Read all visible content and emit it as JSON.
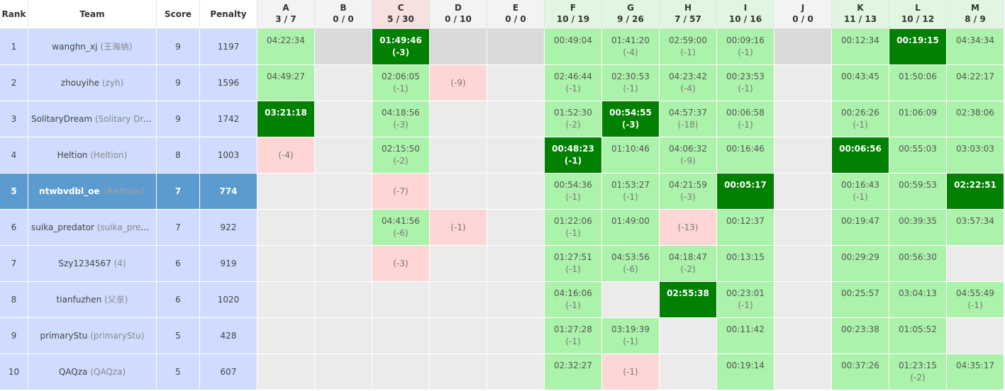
{
  "header": {
    "columns": [
      "Rank",
      "Team",
      "Score",
      "Penalty"
    ],
    "problems": [
      {
        "letter": "A",
        "count": "3 / 7",
        "status": "none"
      },
      {
        "letter": "B",
        "count": "0 / 0",
        "status": "none"
      },
      {
        "letter": "C",
        "count": "5 / 30",
        "status": "failed"
      },
      {
        "letter": "D",
        "count": "0 / 10",
        "status": "none"
      },
      {
        "letter": "E",
        "count": "0 / 0",
        "status": "none"
      },
      {
        "letter": "F",
        "count": "10 / 19",
        "status": "solved"
      },
      {
        "letter": "G",
        "count": "9 / 26",
        "status": "solved"
      },
      {
        "letter": "H",
        "count": "7 / 57",
        "status": "solved"
      },
      {
        "letter": "I",
        "count": "10 / 16",
        "status": "solved"
      },
      {
        "letter": "J",
        "count": "0 / 0",
        "status": "none"
      },
      {
        "letter": "K",
        "count": "11 / 13",
        "status": "solved"
      },
      {
        "letter": "L",
        "count": "10 / 12",
        "status": "solved"
      },
      {
        "letter": "M",
        "count": "8 / 9",
        "status": "solved"
      }
    ]
  },
  "rows": [
    {
      "rank": "1",
      "name": "wanghn_xj",
      "alias": "(王海纳)",
      "score": "9",
      "penalty": "1197",
      "cells": [
        {
          "time": "04:22:34",
          "status": "solved"
        },
        null,
        {
          "time": "01:49:46",
          "tries": "(-3)",
          "status": "first"
        },
        null,
        null,
        {
          "time": "00:49:04",
          "status": "solved"
        },
        {
          "time": "01:41:20",
          "tries": "(-4)",
          "status": "solved"
        },
        {
          "time": "02:59:00",
          "tries": "(-1)",
          "status": "solved"
        },
        {
          "time": "00:09:16",
          "tries": "(-1)",
          "status": "solved"
        },
        null,
        {
          "time": "00:12:34",
          "status": "solved"
        },
        {
          "time": "00:19:15",
          "status": "first"
        },
        {
          "time": "04:34:34",
          "status": "solved"
        }
      ]
    },
    {
      "rank": "2",
      "name": "zhouyihe",
      "alias": "(zyh)",
      "score": "9",
      "penalty": "1596",
      "cells": [
        {
          "time": "04:49:27",
          "status": "solved"
        },
        null,
        {
          "time": "02:06:05",
          "tries": "(-1)",
          "status": "solved"
        },
        {
          "tries": "(-9)",
          "status": "failed"
        },
        null,
        {
          "time": "02:46:44",
          "tries": "(-1)",
          "status": "solved"
        },
        {
          "time": "02:30:53",
          "tries": "(-1)",
          "status": "solved"
        },
        {
          "time": "04:23:42",
          "tries": "(-4)",
          "status": "solved"
        },
        {
          "time": "00:23:53",
          "tries": "(-1)",
          "status": "solved"
        },
        null,
        {
          "time": "00:43:45",
          "status": "solved"
        },
        {
          "time": "01:50:06",
          "status": "solved"
        },
        {
          "time": "04:22:17",
          "status": "solved"
        }
      ]
    },
    {
      "rank": "3",
      "name": "SolitaryDream",
      "alias": "(Solitary Dream)",
      "score": "9",
      "penalty": "1742",
      "cells": [
        {
          "time": "03:21:18",
          "status": "first"
        },
        null,
        {
          "time": "04:18:56",
          "tries": "(-3)",
          "status": "solved"
        },
        null,
        null,
        {
          "time": "01:52:30",
          "tries": "(-2)",
          "status": "solved"
        },
        {
          "time": "00:54:55",
          "tries": "(-3)",
          "status": "first"
        },
        {
          "time": "04:57:37",
          "tries": "(-18)",
          "status": "solved"
        },
        {
          "time": "00:06:58",
          "tries": "(-1)",
          "status": "solved"
        },
        null,
        {
          "time": "00:26:26",
          "tries": "(-1)",
          "status": "solved"
        },
        {
          "time": "01:06:09",
          "status": "solved"
        },
        {
          "time": "02:38:06",
          "status": "solved"
        }
      ]
    },
    {
      "rank": "4",
      "name": "Heltion",
      "alias": "(Heltion)",
      "score": "8",
      "penalty": "1003",
      "cells": [
        {
          "tries": "(-4)",
          "status": "failed"
        },
        null,
        {
          "time": "02:15:50",
          "tries": "(-2)",
          "status": "solved"
        },
        null,
        null,
        {
          "time": "00:48:23",
          "tries": "(-1)",
          "status": "first"
        },
        {
          "time": "01:10:46",
          "status": "solved"
        },
        {
          "time": "04:06:32",
          "tries": "(-9)",
          "status": "solved"
        },
        {
          "time": "00:16:46",
          "status": "solved"
        },
        null,
        {
          "time": "00:06:56",
          "status": "first"
        },
        {
          "time": "00:55:03",
          "status": "solved"
        },
        {
          "time": "03:03:03",
          "status": "solved"
        }
      ]
    },
    {
      "rank": "5",
      "name": "ntwbvdbl_oe",
      "alias": "(Refrain)",
      "score": "7",
      "penalty": "774",
      "highlight": true,
      "cells": [
        null,
        null,
        {
          "tries": "(-7)",
          "status": "failed"
        },
        null,
        null,
        {
          "time": "00:54:36",
          "tries": "(-1)",
          "status": "solved"
        },
        {
          "time": "01:53:27",
          "tries": "(-1)",
          "status": "solved"
        },
        {
          "time": "04:21:59",
          "tries": "(-3)",
          "status": "solved"
        },
        {
          "time": "00:05:17",
          "status": "first"
        },
        null,
        {
          "time": "00:16:43",
          "tries": "(-1)",
          "status": "solved"
        },
        {
          "time": "00:59:53",
          "status": "solved"
        },
        {
          "time": "02:22:51",
          "status": "first"
        }
      ]
    },
    {
      "rank": "6",
      "name": "suika_predator",
      "alias": "(suika_predat...",
      "score": "7",
      "penalty": "922",
      "cells": [
        null,
        null,
        {
          "time": "04:41:56",
          "tries": "(-6)",
          "status": "solved"
        },
        {
          "tries": "(-1)",
          "status": "failed"
        },
        null,
        {
          "time": "01:22:06",
          "tries": "(-1)",
          "status": "solved"
        },
        {
          "time": "01:49:00",
          "status": "solved"
        },
        {
          "tries": "(-13)",
          "status": "failed"
        },
        {
          "time": "00:12:37",
          "status": "solved"
        },
        null,
        {
          "time": "00:19:47",
          "status": "solved"
        },
        {
          "time": "00:39:35",
          "status": "solved"
        },
        {
          "time": "03:57:34",
          "status": "solved"
        }
      ]
    },
    {
      "rank": "7",
      "name": "Szy1234567",
      "alias": "(4)",
      "score": "6",
      "penalty": "919",
      "cells": [
        null,
        null,
        {
          "tries": "(-3)",
          "status": "failed"
        },
        null,
        null,
        {
          "time": "01:27:51",
          "tries": "(-1)",
          "status": "solved"
        },
        {
          "time": "04:53:56",
          "tries": "(-6)",
          "status": "solved"
        },
        {
          "time": "04:18:47",
          "tries": "(-2)",
          "status": "solved"
        },
        {
          "time": "00:13:15",
          "status": "solved"
        },
        null,
        {
          "time": "00:29:29",
          "status": "solved"
        },
        {
          "time": "00:56:30",
          "status": "solved"
        },
        null
      ]
    },
    {
      "rank": "8",
      "name": "tianfuzhen",
      "alias": "(父亲)",
      "score": "6",
      "penalty": "1020",
      "cells": [
        null,
        null,
        null,
        null,
        null,
        {
          "time": "04:16:06",
          "tries": "(-1)",
          "status": "solved"
        },
        null,
        {
          "time": "02:55:38",
          "status": "first"
        },
        {
          "time": "00:23:01",
          "tries": "(-1)",
          "status": "solved"
        },
        null,
        {
          "time": "00:25:57",
          "status": "solved"
        },
        {
          "time": "03:04:13",
          "status": "solved"
        },
        {
          "time": "04:55:49",
          "tries": "(-1)",
          "status": "solved"
        }
      ]
    },
    {
      "rank": "9",
      "name": "primaryStu",
      "alias": "(primaryStu)",
      "score": "5",
      "penalty": "428",
      "cells": [
        null,
        null,
        null,
        null,
        null,
        {
          "time": "01:27:28",
          "tries": "(-1)",
          "status": "solved"
        },
        {
          "time": "03:19:39",
          "tries": "(-1)",
          "status": "solved"
        },
        null,
        {
          "time": "00:11:42",
          "status": "solved"
        },
        null,
        {
          "time": "00:23:38",
          "status": "solved"
        },
        {
          "time": "01:05:52",
          "status": "solved"
        },
        null
      ]
    },
    {
      "rank": "10",
      "name": "QAQza",
      "alias": "(QAQza)",
      "score": "5",
      "penalty": "607",
      "cells": [
        null,
        null,
        null,
        null,
        null,
        {
          "time": "02:32:27",
          "status": "solved"
        },
        {
          "tries": "(-1)",
          "status": "failed"
        },
        null,
        {
          "time": "00:19:14",
          "status": "solved"
        },
        null,
        {
          "time": "00:37:26",
          "status": "solved"
        },
        {
          "time": "01:23:15",
          "tries": "(-2)",
          "status": "solved"
        },
        {
          "time": "04:35:17",
          "status": "solved"
        }
      ]
    }
  ]
}
